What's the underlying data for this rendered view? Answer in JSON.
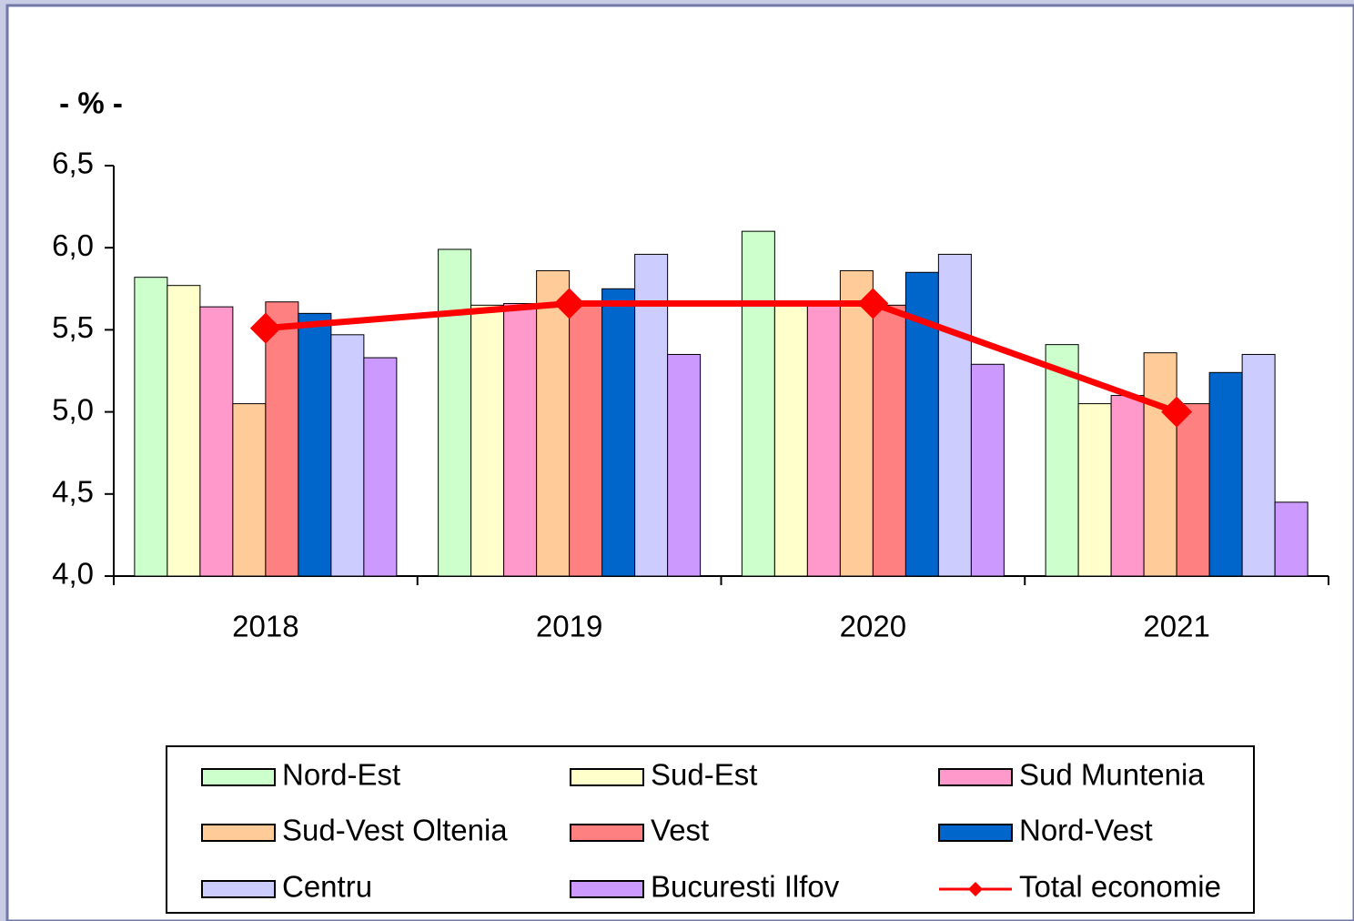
{
  "chart_data": {
    "type": "bar-line",
    "y_label": "- % -",
    "categories": [
      "2018",
      "2019",
      "2020",
      "2021"
    ],
    "ylim": [
      4.0,
      6.5
    ],
    "yticks": [
      {
        "value": 4.0,
        "label": "4,0"
      },
      {
        "value": 4.5,
        "label": "4,5"
      },
      {
        "value": 5.0,
        "label": "5,0"
      },
      {
        "value": 5.5,
        "label": "5,5"
      },
      {
        "value": 6.0,
        "label": "6,0"
      },
      {
        "value": 6.5,
        "label": "6,5"
      }
    ],
    "series": [
      {
        "name": "Nord-Est",
        "color": "#ccffcc",
        "type": "bar",
        "values": [
          5.82,
          5.99,
          6.1,
          5.41
        ]
      },
      {
        "name": "Sud-Est",
        "color": "#ffffcc",
        "type": "bar",
        "values": [
          5.77,
          5.65,
          5.65,
          5.05
        ]
      },
      {
        "name": "Sud Muntenia",
        "color": "#ff99cc",
        "type": "bar",
        "values": [
          5.64,
          5.66,
          5.65,
          5.1
        ]
      },
      {
        "name": "Sud-Vest Oltenia",
        "color": "#ffcc99",
        "type": "bar",
        "values": [
          5.05,
          5.86,
          5.86,
          5.36
        ]
      },
      {
        "name": "Vest",
        "color": "#ff8080",
        "type": "bar",
        "values": [
          5.67,
          5.66,
          5.65,
          5.05
        ]
      },
      {
        "name": "Nord-Vest",
        "color": "#0066cc",
        "type": "bar",
        "values": [
          5.6,
          5.75,
          5.85,
          5.24
        ]
      },
      {
        "name": "Centru",
        "color": "#ccccff",
        "type": "bar",
        "values": [
          5.47,
          5.96,
          5.96,
          5.35
        ]
      },
      {
        "name": "Bucuresti Ilfov",
        "color": "#cc99ff",
        "type": "bar",
        "values": [
          5.33,
          5.35,
          5.29,
          4.45
        ]
      },
      {
        "name": "Total economie",
        "color": "#ff0000",
        "type": "line",
        "values": [
          5.51,
          5.66,
          5.66,
          5.0
        ]
      }
    ]
  }
}
